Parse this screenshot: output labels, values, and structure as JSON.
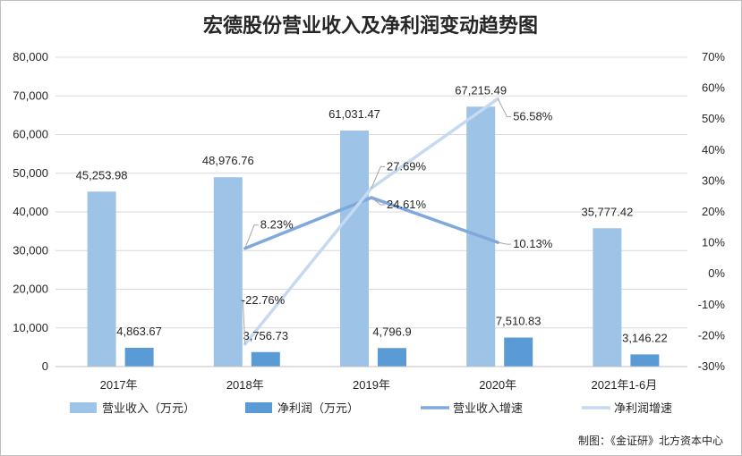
{
  "chart_data": {
    "type": "bar",
    "title": "宏德股份营业收入及净利润变动趋势图",
    "categories": [
      "2017年",
      "2018年",
      "2019年",
      "2020年",
      "2021年1-6月"
    ],
    "series": [
      {
        "name": "营业收入（万元）",
        "kind": "bar",
        "axis": "left",
        "color": "#9dc3e6",
        "values": [
          45253.98,
          48976.76,
          61031.47,
          67215.49,
          35777.42
        ],
        "labels": [
          "45,253.98",
          "48,976.76",
          "61,031.47",
          "67,215.49",
          "35,777.42"
        ]
      },
      {
        "name": "净利润（万元）",
        "kind": "bar",
        "axis": "left",
        "color": "#5b9bd5",
        "values": [
          4863.67,
          3756.73,
          4796.9,
          7510.83,
          3146.22
        ],
        "labels": [
          "4,863.67",
          "3,756.73",
          "4,796.9",
          "7,510.83",
          "3,146.22"
        ]
      },
      {
        "name": "营业收入增速",
        "kind": "line",
        "axis": "right",
        "color": "#7fa9dd",
        "values": [
          null,
          8.23,
          24.61,
          10.13,
          null
        ],
        "labels": [
          "",
          "8.23%",
          "24.61%",
          "10.13%",
          ""
        ]
      },
      {
        "name": "净利润增速",
        "kind": "line",
        "axis": "right",
        "color": "#c5d9f1",
        "values": [
          null,
          -22.76,
          27.69,
          56.58,
          null
        ],
        "labels": [
          "",
          "-22.76%",
          "27.69%",
          "56.58%",
          ""
        ]
      }
    ],
    "y_left": {
      "min": 0,
      "max": 80000,
      "ticks": [
        "0",
        "10,000",
        "20,000",
        "30,000",
        "40,000",
        "50,000",
        "60,000",
        "70,000",
        "80,000"
      ]
    },
    "y_right": {
      "min": -30,
      "max": 70,
      "ticks": [
        "-30%",
        "-20%",
        "-10%",
        "0%",
        "10%",
        "20%",
        "30%",
        "40%",
        "50%",
        "60%",
        "70%"
      ]
    },
    "grid": true,
    "legend_position": "bottom"
  },
  "credit": "制图：《金证研》北方资本中心"
}
